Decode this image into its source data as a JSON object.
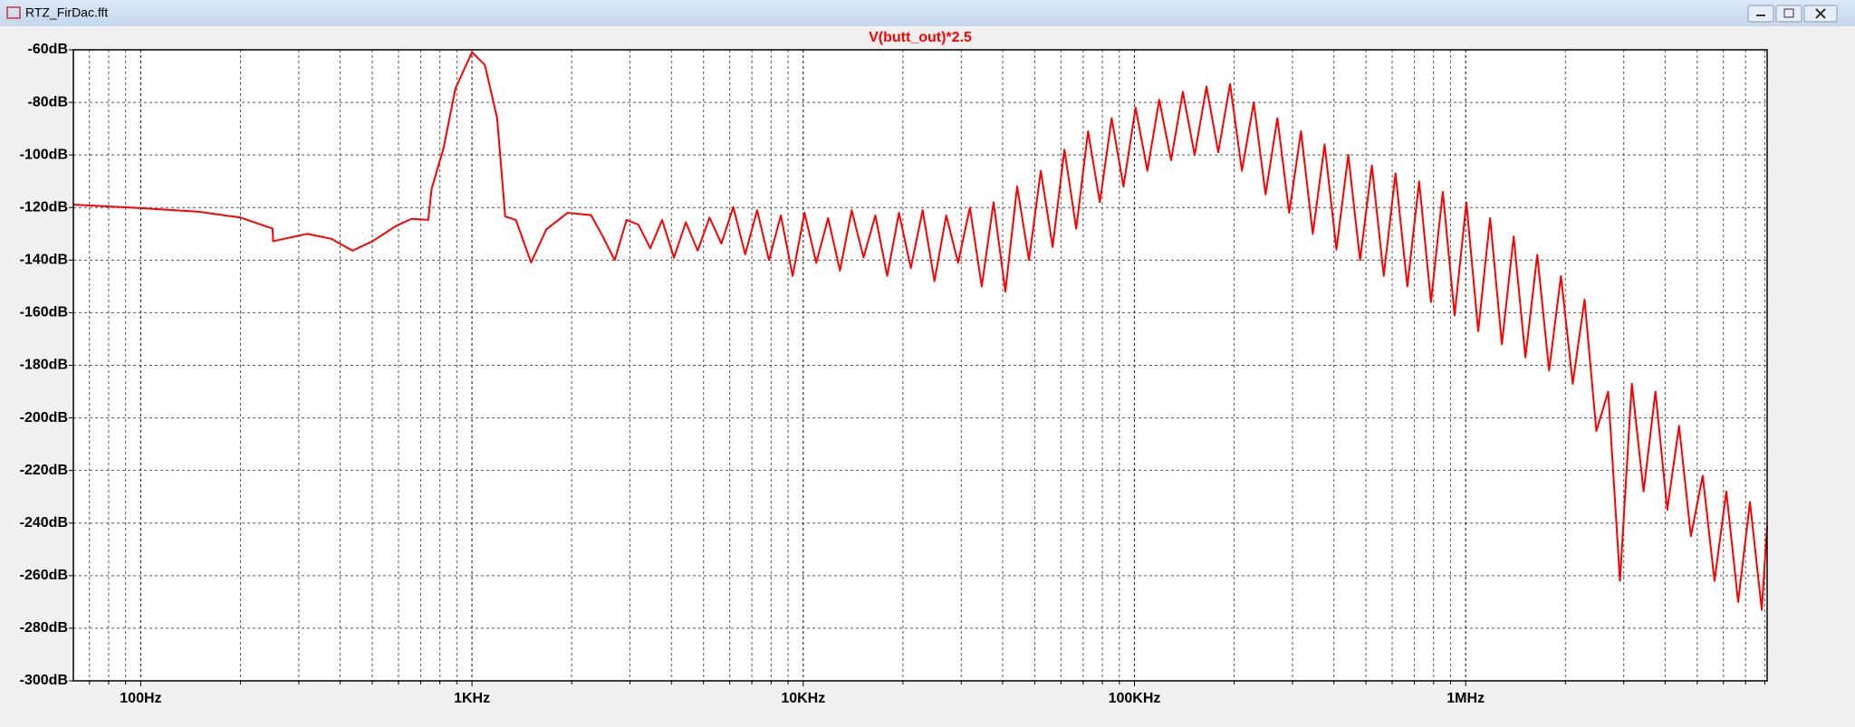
{
  "window": {
    "title": "RTZ_FirDac.fft"
  },
  "chart_data": {
    "type": "line",
    "xscale": "log",
    "grid": true,
    "xlim": [
      62.6,
      8130000
    ],
    "ylim": [
      -300,
      -60
    ],
    "xticks": [
      {
        "value": 100,
        "label": "100Hz"
      },
      {
        "value": 1000,
        "label": "1KHz"
      },
      {
        "value": 10000,
        "label": "10KHz"
      },
      {
        "value": 100000,
        "label": "100KHz"
      },
      {
        "value": 1000000,
        "label": "1MHz"
      }
    ],
    "xminorticks": [
      70,
      80,
      90,
      200,
      300,
      400,
      500,
      600,
      700,
      800,
      900,
      2000,
      3000,
      4000,
      5000,
      6000,
      7000,
      8000,
      9000,
      20000,
      30000,
      40000,
      50000,
      60000,
      70000,
      80000,
      90000,
      200000,
      300000,
      400000,
      500000,
      600000,
      700000,
      800000,
      900000,
      2000000,
      3000000,
      4000000,
      5000000,
      6000000,
      7000000,
      8000000
    ],
    "yticks": [
      {
        "value": -60,
        "label": "-60dB"
      },
      {
        "value": -80,
        "label": "-80dB"
      },
      {
        "value": -100,
        "label": "-100dB"
      },
      {
        "value": -120,
        "label": "-120dB"
      },
      {
        "value": -140,
        "label": "-140dB"
      },
      {
        "value": -160,
        "label": "-160dB"
      },
      {
        "value": -180,
        "label": "-180dB"
      },
      {
        "value": -200,
        "label": "-200dB"
      },
      {
        "value": -220,
        "label": "-220dB"
      },
      {
        "value": -240,
        "label": "-240dB"
      },
      {
        "value": -260,
        "label": "-260dB"
      },
      {
        "value": -280,
        "label": "-280dB"
      },
      {
        "value": -300,
        "label": "-300dB"
      }
    ],
    "x": [
      62.6,
      100,
      150,
      200,
      250,
      251,
      318,
      376,
      436,
      501,
      590,
      657,
      738,
      755,
      821,
      891,
      1000,
      1094,
      1191,
      1260,
      1357,
      1508,
      1677,
      1944,
      2288,
      2483,
      2697,
      2929,
      3180,
      3453,
      3750,
      4072,
      4422,
      4802,
      5214,
      5661,
      6150,
      6680,
      7260,
      7880,
      8560,
      9290,
      10090,
      10950,
      11890,
      12910,
      14010,
      15210,
      16510,
      17930,
      19460,
      21130,
      22940,
      24900,
      27030,
      29350,
      31860,
      34590,
      37550,
      40760,
      44250,
      48040,
      52150,
      56620,
      61460,
      66720,
      72430,
      78630,
      85360,
      92670,
      100800,
      109400,
      118800,
      129000,
      140000,
      152000,
      165000,
      179100,
      194400,
      211100,
      229200,
      248800,
      270100,
      293200,
      318300,
      345500,
      375100,
      407200,
      442100,
      479900,
      521000,
      565600,
      614000,
      666600,
      723600,
      785600,
      852800,
      925800,
      1005000,
      1091000,
      1185000,
      1286000,
      1396000,
      1515000,
      1645000,
      1786000,
      1939000,
      2105000,
      2285000,
      2480000,
      2693000,
      2923000,
      3174000,
      3445000,
      3740000,
      4060000,
      4408000,
      4785000,
      5195000,
      5639000,
      6122000,
      6646000,
      7215000,
      7832000,
      8130000
    ],
    "series": [
      {
        "name": "V(butt_out)*2.5",
        "color": "#ff0000",
        "values": [
          -118.9,
          -120.2,
          -121.6,
          -123.8,
          -128,
          -132.8,
          -130,
          -131.9,
          -136.4,
          -132.8,
          -127,
          -124.3,
          -124.7,
          -113,
          -97.3,
          -74.8,
          -60.9,
          -65.8,
          -86,
          -123.4,
          -124.7,
          -140.9,
          -128.3,
          -122,
          -122.9,
          -131,
          -140,
          -124.7,
          -126.5,
          -135.5,
          -124.7,
          -139.1,
          -125.6,
          -136.4,
          -123.8,
          -133.7,
          -119.8,
          -137.8,
          -121,
          -140,
          -123,
          -146,
          -122,
          -141,
          -124,
          -144,
          -121,
          -139,
          -123,
          -146,
          -122,
          -143,
          -121,
          -148,
          -123,
          -141,
          -120,
          -150,
          -118,
          -152,
          -112,
          -140,
          -106,
          -135,
          -98,
          -128,
          -91,
          -118,
          -86,
          -112,
          -82,
          -106,
          -79,
          -102,
          -76,
          -100,
          -74,
          -99,
          -73,
          -106,
          -80,
          -115,
          -86,
          -122,
          -91,
          -130,
          -96,
          -136,
          -100,
          -140,
          -104,
          -146,
          -107,
          -150,
          -110,
          -156,
          -114,
          -161,
          -118,
          -167,
          -124,
          -172,
          -131,
          -177,
          -138,
          -182,
          -146,
          -187,
          -155,
          -205,
          -190,
          -262,
          -187,
          -228,
          -190,
          -235,
          -203,
          -245,
          -222,
          -262,
          -228,
          -270,
          -232,
          -273,
          -241
        ]
      }
    ]
  }
}
